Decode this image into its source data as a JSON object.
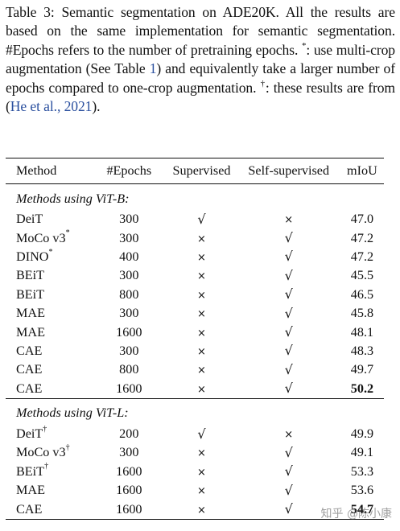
{
  "caption": {
    "label": "Table 3:",
    "text_1": " Semantic segmentation on ADE20K. All the results are based on the same implementation for semantic segmentation. #Epochs refers to the number of pretraining epochs. ",
    "mark_1": "*",
    "text_2": ": use multi-crop augmentation (See Table ",
    "table_ref": "1",
    "text_3": ") and equivalently take a larger number of epochs compared to one-crop augmentation. ",
    "mark_2": "†",
    "text_4": ": these results are from (",
    "citation": "He et al., 2021",
    "text_5": ")."
  },
  "table": {
    "headers": {
      "method": "Method",
      "epochs": "#Epochs",
      "supervised": "Supervised",
      "self_supervised": "Self-supervised",
      "miou": "mIoU"
    },
    "symbols": {
      "check": "√",
      "cross": "×"
    },
    "sections": [
      {
        "title": "Methods using ViT-B:",
        "rows": [
          {
            "method": "DeiT",
            "mark": "",
            "epochs": "300",
            "sup": "√",
            "self": "×",
            "miou": "47.0",
            "bold": false
          },
          {
            "method": "MoCo v3",
            "mark": "*",
            "epochs": "300",
            "sup": "×",
            "self": "√",
            "miou": "47.2",
            "bold": false
          },
          {
            "method": "DINO",
            "mark": "*",
            "epochs": "400",
            "sup": "×",
            "self": "√",
            "miou": "47.2",
            "bold": false
          },
          {
            "method": "BEiT",
            "mark": "",
            "epochs": "300",
            "sup": "×",
            "self": "√",
            "miou": "45.5",
            "bold": false
          },
          {
            "method": "BEiT",
            "mark": "",
            "epochs": "800",
            "sup": "×",
            "self": "√",
            "miou": "46.5",
            "bold": false
          },
          {
            "method": "MAE",
            "mark": "",
            "epochs": "300",
            "sup": "×",
            "self": "√",
            "miou": "45.8",
            "bold": false
          },
          {
            "method": "MAE",
            "mark": "",
            "epochs": "1600",
            "sup": "×",
            "self": "√",
            "miou": "48.1",
            "bold": false
          },
          {
            "method": "CAE",
            "mark": "",
            "epochs": "300",
            "sup": "×",
            "self": "√",
            "miou": "48.3",
            "bold": false
          },
          {
            "method": "CAE",
            "mark": "",
            "epochs": "800",
            "sup": "×",
            "self": "√",
            "miou": "49.7",
            "bold": false
          },
          {
            "method": "CAE",
            "mark": "",
            "epochs": "1600",
            "sup": "×",
            "self": "√",
            "miou": "50.2",
            "bold": true
          }
        ]
      },
      {
        "title": "Methods using ViT-L:",
        "rows": [
          {
            "method": "DeiT",
            "mark": "†",
            "epochs": "200",
            "sup": "√",
            "self": "×",
            "miou": "49.9",
            "bold": false
          },
          {
            "method": "MoCo v3",
            "mark": "†",
            "epochs": "300",
            "sup": "×",
            "self": "√",
            "miou": "49.1",
            "bold": false
          },
          {
            "method": "BEiT",
            "mark": "†",
            "epochs": "1600",
            "sup": "×",
            "self": "√",
            "miou": "53.3",
            "bold": false
          },
          {
            "method": "MAE",
            "mark": "",
            "epochs": "1600",
            "sup": "×",
            "self": "√",
            "miou": "53.6",
            "bold": false
          },
          {
            "method": "CAE",
            "mark": "",
            "epochs": "1600",
            "sup": "×",
            "self": "√",
            "miou": "54.7",
            "bold": true
          }
        ]
      }
    ]
  },
  "watermark": "知乎 @陈小康"
}
